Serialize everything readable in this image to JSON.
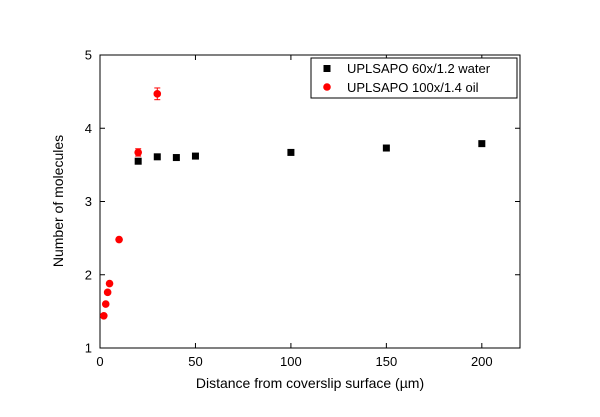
{
  "chart_data": {
    "type": "scatter",
    "title": "",
    "xlabel": "Distance from coverslip surface (µm)",
    "ylabel": "Number of molecules",
    "xlim": [
      0,
      220
    ],
    "ylim": [
      1,
      5
    ],
    "xticks": [
      0,
      50,
      100,
      150,
      200
    ],
    "yticks": [
      1,
      2,
      3,
      4,
      5
    ],
    "legend_position": "top-right",
    "series": [
      {
        "name": "UPLSAPO 60x/1.2 water",
        "marker": "square",
        "color": "#000000",
        "x": [
          20,
          30,
          40,
          50,
          100,
          150,
          200
        ],
        "y": [
          3.55,
          3.61,
          3.6,
          3.62,
          3.67,
          3.73,
          3.79
        ],
        "error": [
          0,
          0,
          0,
          0,
          0,
          0,
          0
        ]
      },
      {
        "name": "UPLSAPO 100x/1.4 oil",
        "marker": "circle",
        "color": "#ff0000",
        "x": [
          2,
          3,
          4,
          5,
          10,
          20,
          30
        ],
        "y": [
          1.44,
          1.6,
          1.76,
          1.88,
          2.48,
          3.67,
          4.47
        ],
        "error": [
          0,
          0,
          0,
          0,
          0,
          0.05,
          0.08
        ]
      }
    ]
  }
}
